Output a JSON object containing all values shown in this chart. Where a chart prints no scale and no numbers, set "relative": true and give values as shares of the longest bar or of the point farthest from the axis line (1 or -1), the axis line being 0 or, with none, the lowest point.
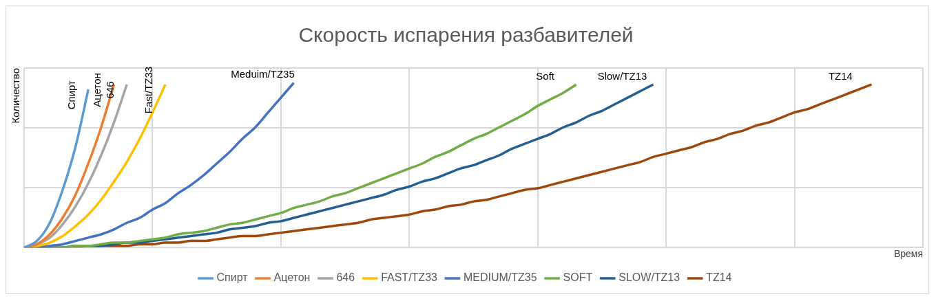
{
  "chart_data": {
    "type": "line",
    "title": "Скорость испарения разбавителей",
    "xlabel": "Время",
    "ylabel": "Количество",
    "relative": true,
    "grid": true,
    "legend": "bottom",
    "marker": "none",
    "line_style": "solid",
    "categories": [
      null,
      null,
      null,
      null,
      null,
      null,
      null,
      null,
      null,
      null,
      null,
      null,
      null,
      null,
      null,
      null,
      null,
      null,
      null,
      null,
      null,
      null,
      null,
      null,
      null,
      null,
      null,
      null,
      null,
      null,
      null,
      null,
      null,
      null,
      null,
      null,
      null,
      null,
      null,
      null,
      null,
      null,
      null,
      null,
      null,
      null,
      null,
      null,
      null,
      null,
      null,
      null,
      null,
      null,
      null,
      null,
      null,
      null,
      null,
      null,
      null,
      null,
      null,
      null,
      null,
      null,
      null,
      null,
      null,
      null,
      null
    ],
    "series": [
      {
        "name": "Спирт",
        "color": "#5b9bd5",
        "values": [
          0,
          0.04,
          0.15,
          0.35,
          0.61,
          0.96,
          null,
          null,
          null,
          null,
          null,
          null,
          null,
          null,
          null,
          null,
          null,
          null,
          null,
          null,
          null,
          null,
          null,
          null,
          null,
          null,
          null,
          null,
          null,
          null,
          null,
          null,
          null,
          null,
          null,
          null,
          null,
          null,
          null,
          null,
          null,
          null,
          null,
          null,
          null,
          null,
          null,
          null,
          null,
          null,
          null,
          null,
          null,
          null,
          null,
          null,
          null,
          null,
          null,
          null,
          null,
          null,
          null,
          null,
          null,
          null,
          null,
          null,
          null,
          null,
          null
        ]
      },
      {
        "name": "Ацетон",
        "color": "#ed7d31",
        "values": [
          0,
          0.02,
          0.08,
          0.18,
          0.32,
          0.51,
          0.73,
          0.99,
          null,
          null,
          null,
          null,
          null,
          null,
          null,
          null,
          null,
          null,
          null,
          null,
          null,
          null,
          null,
          null,
          null,
          null,
          null,
          null,
          null,
          null,
          null,
          null,
          null,
          null,
          null,
          null,
          null,
          null,
          null,
          null,
          null,
          null,
          null,
          null,
          null,
          null,
          null,
          null,
          null,
          null,
          null,
          null,
          null,
          null,
          null,
          null,
          null,
          null,
          null,
          null,
          null,
          null,
          null,
          null,
          null,
          null,
          null,
          null,
          null,
          null,
          null
        ]
      },
      {
        "name": "646",
        "color": "#a5a5a5",
        "values": [
          0,
          0.02,
          0.06,
          0.14,
          0.25,
          0.39,
          0.56,
          0.76,
          0.99,
          null,
          null,
          null,
          null,
          null,
          null,
          null,
          null,
          null,
          null,
          null,
          null,
          null,
          null,
          null,
          null,
          null,
          null,
          null,
          null,
          null,
          null,
          null,
          null,
          null,
          null,
          null,
          null,
          null,
          null,
          null,
          null,
          null,
          null,
          null,
          null,
          null,
          null,
          null,
          null,
          null,
          null,
          null,
          null,
          null,
          null,
          null,
          null,
          null,
          null,
          null,
          null,
          null,
          null,
          null,
          null,
          null,
          null,
          null,
          null,
          null,
          null
        ]
      },
      {
        "name": "FAST/TZ33",
        "color": "#ffc000",
        "values": [
          0,
          0.01,
          0.03,
          0.07,
          0.13,
          0.2,
          0.29,
          0.4,
          0.52,
          0.66,
          0.82,
          0.99,
          null,
          null,
          null,
          null,
          null,
          null,
          null,
          null,
          null,
          null,
          null,
          null,
          null,
          null,
          null,
          null,
          null,
          null,
          null,
          null,
          null,
          null,
          null,
          null,
          null,
          null,
          null,
          null,
          null,
          null,
          null,
          null,
          null,
          null,
          null,
          null,
          null,
          null,
          null,
          null,
          null,
          null,
          null,
          null,
          null,
          null,
          null,
          null,
          null,
          null,
          null,
          null,
          null,
          null,
          null,
          null,
          null,
          null,
          null
        ]
      },
      {
        "name": "MEDIUM/TZ35",
        "color": "#4472c4",
        "values": [
          0,
          0,
          0.01,
          0.02,
          0.04,
          0.06,
          0.08,
          0.11,
          0.15,
          0.18,
          0.23,
          0.27,
          0.33,
          0.38,
          0.44,
          0.51,
          0.58,
          0.66,
          0.73,
          0.82,
          0.91,
          1,
          null,
          null,
          null,
          null,
          null,
          null,
          null,
          null,
          null,
          null,
          null,
          null,
          null,
          null,
          null,
          null,
          null,
          null,
          null,
          null,
          null,
          null,
          null,
          null,
          null,
          null,
          null,
          null,
          null,
          null,
          null,
          null,
          null,
          null,
          null,
          null,
          null,
          null,
          null,
          null,
          null,
          null,
          null,
          null,
          null,
          null,
          null,
          null,
          null
        ]
      },
      {
        "name": "SOFT",
        "color": "#70ad47",
        "values": [
          0,
          0,
          0,
          0,
          0.01,
          0.01,
          0.02,
          0.03,
          0.03,
          0.04,
          0.05,
          0.06,
          0.08,
          0.09,
          0.1,
          0.12,
          0.14,
          0.15,
          0.17,
          0.19,
          0.21,
          0.24,
          0.26,
          0.28,
          0.31,
          0.33,
          0.36,
          0.39,
          0.42,
          0.45,
          0.48,
          0.51,
          0.55,
          0.58,
          0.62,
          0.66,
          0.69,
          0.73,
          0.77,
          0.81,
          0.86,
          0.9,
          0.94,
          0.99,
          null,
          null,
          null,
          null,
          null,
          null,
          null,
          null,
          null,
          null,
          null,
          null,
          null,
          null,
          null,
          null,
          null,
          null,
          null,
          null,
          null,
          null,
          null,
          null,
          null,
          null,
          null
        ]
      },
      {
        "name": "SLOW/TZ13",
        "color": "#255e91",
        "values": [
          0,
          0,
          0,
          0,
          0.01,
          0.01,
          0.01,
          0.02,
          0.03,
          0.03,
          0.04,
          0.05,
          0.06,
          0.07,
          0.08,
          0.09,
          0.11,
          0.12,
          0.13,
          0.15,
          0.16,
          0.18,
          0.2,
          0.22,
          0.24,
          0.26,
          0.28,
          0.3,
          0.32,
          0.35,
          0.37,
          0.4,
          0.42,
          0.45,
          0.48,
          0.5,
          0.53,
          0.56,
          0.6,
          0.63,
          0.66,
          0.69,
          0.73,
          0.76,
          0.8,
          0.83,
          0.87,
          0.91,
          0.95,
          0.99,
          null,
          null,
          null,
          null,
          null,
          null,
          null,
          null,
          null,
          null,
          null,
          null,
          null,
          null,
          null,
          null,
          null,
          null,
          null,
          null,
          null
        ]
      },
      {
        "name": "TZ14",
        "color": "#9e480e",
        "values": [
          0,
          0,
          0,
          0,
          0,
          0.01,
          0.01,
          0.01,
          0.01,
          0.02,
          0.02,
          0.03,
          0.03,
          0.04,
          0.04,
          0.05,
          0.06,
          0.07,
          0.07,
          0.08,
          0.09,
          0.1,
          0.11,
          0.12,
          0.13,
          0.14,
          0.15,
          0.17,
          0.18,
          0.19,
          0.2,
          0.22,
          0.23,
          0.25,
          0.26,
          0.28,
          0.29,
          0.31,
          0.33,
          0.35,
          0.36,
          0.38,
          0.4,
          0.42,
          0.44,
          0.46,
          0.48,
          0.5,
          0.52,
          0.55,
          0.57,
          0.59,
          0.61,
          0.64,
          0.66,
          0.69,
          0.71,
          0.74,
          0.76,
          0.79,
          0.82,
          0.84,
          0.87,
          0.9,
          0.93,
          0.96,
          0.99,
          null,
          null,
          null,
          null
        ]
      }
    ],
    "annotations": [
      "Спирт",
      "Ацетон",
      "646",
      "Fast/TZ33",
      "Meduim/TZ35",
      "Soft",
      "Slow/TZ13",
      "TZ14"
    ]
  }
}
